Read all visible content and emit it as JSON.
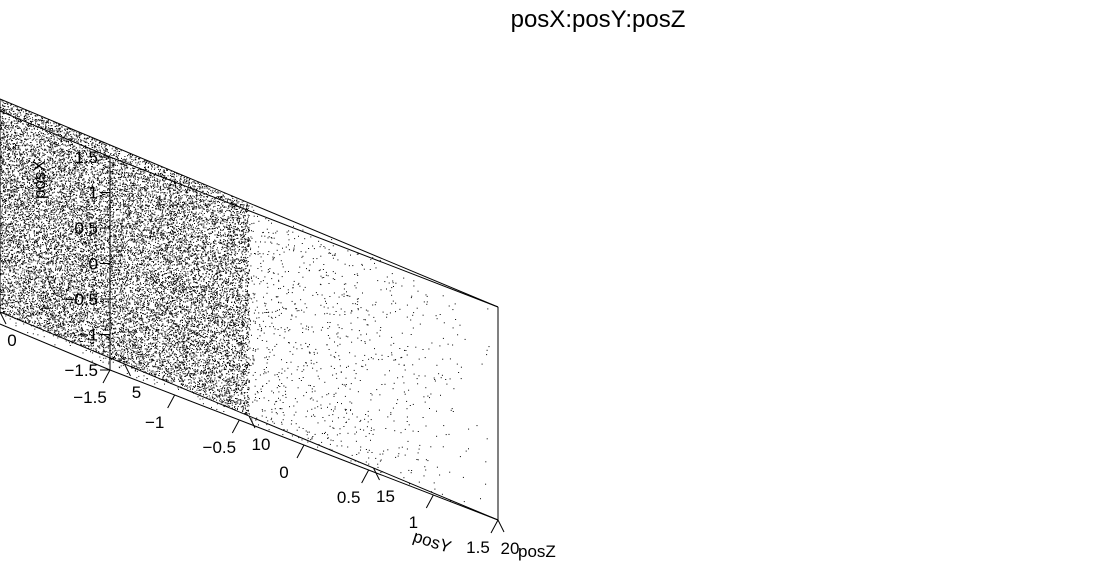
{
  "chart_data": {
    "type": "scatter",
    "plot_kind": "3d-scatter",
    "title": "posX:posY:posZ",
    "axes": {
      "x": {
        "label": "posY",
        "range": [
          -1.5,
          1.5
        ],
        "ticks": [
          "−1.5",
          "−1",
          "−0.5",
          "0",
          "0.5",
          "1",
          "1.5"
        ],
        "tick_values": [
          -1.5,
          -1,
          -0.5,
          0,
          0.5,
          1,
          1.5
        ]
      },
      "y": {
        "label": "posZ",
        "range": [
          0,
          20
        ],
        "ticks": [
          "0",
          "5",
          "10",
          "15",
          "20"
        ],
        "tick_values": [
          0,
          5,
          10,
          15,
          20
        ]
      },
      "z": {
        "label": "posX",
        "range": [
          -1.5,
          1.5
        ],
        "ticks": [
          "−1.5",
          "−1",
          "−0.5",
          "0",
          "0.5",
          "1",
          "1.5"
        ],
        "tick_values": [
          -1.5,
          -1,
          -0.5,
          0,
          0.5,
          1,
          1.5
        ]
      }
    },
    "distributions": [
      {
        "region": "uniform volume",
        "posX": [
          -1.5,
          1.5
        ],
        "posY": [
          -1.5,
          1.5
        ],
        "posZ": [
          0,
          20
        ],
        "density": "sparse"
      },
      {
        "region": "plane at posY = 1.5",
        "posX": [
          -1.5,
          1.5
        ],
        "posY": [
          1.5,
          1.5
        ],
        "posZ": [
          0,
          10
        ],
        "density": "dense"
      }
    ],
    "grid": false,
    "marker": "dot",
    "color": "#000000"
  }
}
